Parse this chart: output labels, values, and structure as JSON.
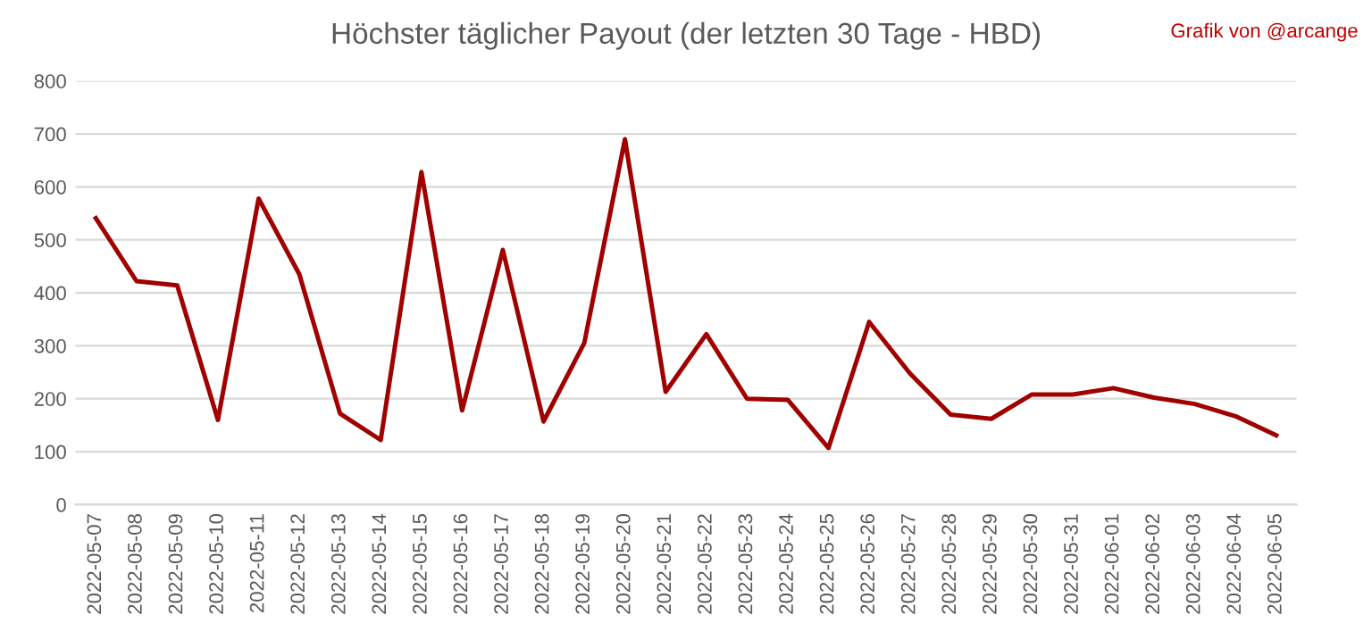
{
  "chart_data": {
    "type": "line",
    "title": "Höchster täglicher Payout (der letzten 30 Tage - HBD)",
    "annotations": [
      "Grafik von @arcange"
    ],
    "categories": [
      "2022-05-07",
      "2022-05-08",
      "2022-05-09",
      "2022-05-10",
      "2022-05-11",
      "2022-05-12",
      "2022-05-13",
      "2022-05-14",
      "2022-05-15",
      "2022-05-16",
      "2022-05-17",
      "2022-05-18",
      "2022-05-19",
      "2022-05-20",
      "2022-05-21",
      "2022-05-22",
      "2022-05-23",
      "2022-05-24",
      "2022-05-25",
      "2022-05-26",
      "2022-05-27",
      "2022-05-28",
      "2022-05-29",
      "2022-05-30",
      "2022-05-31",
      "2022-06-01",
      "2022-06-02",
      "2022-06-03",
      "2022-06-04",
      "2022-06-05"
    ],
    "series": [
      {
        "color": "#a00000",
        "values": [
          541,
          422,
          414,
          160,
          578,
          435,
          172,
          122,
          628,
          178,
          481,
          157,
          305,
          690,
          213,
          322,
          200,
          198,
          107,
          345,
          248,
          170,
          162,
          208,
          208,
          220,
          202,
          190,
          167,
          131
        ]
      }
    ],
    "ylim": [
      0,
      800
    ],
    "yticks": [
      0,
      100,
      200,
      300,
      400,
      500,
      600,
      700,
      800
    ],
    "grid": "y",
    "legend": false,
    "marker": "none",
    "line_style": "solid"
  }
}
